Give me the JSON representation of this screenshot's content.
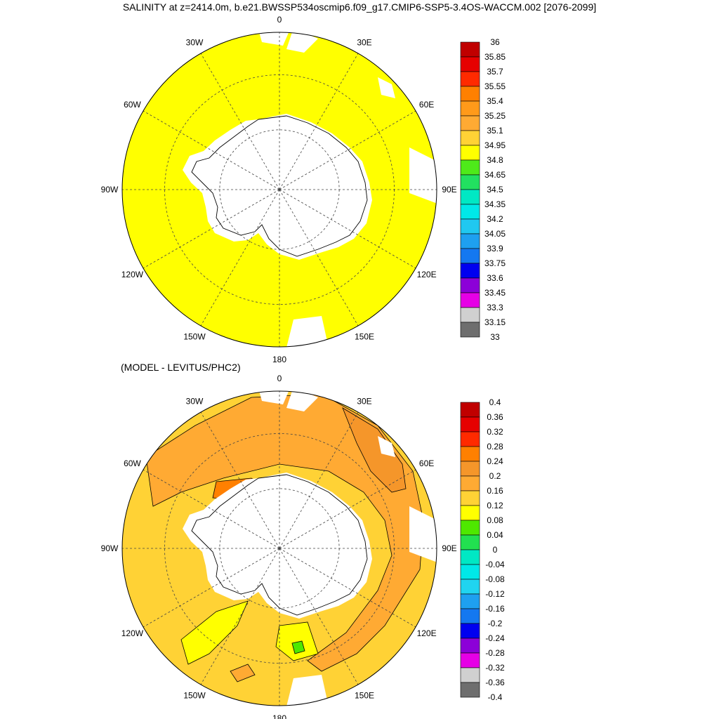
{
  "page_title": "SALINITY at z=2414.0m, b.e21.BWSSP534oscmip6.f09_g17.CMIP6-SSP5-3.4OS-WACCM.002 [2076-2099]",
  "colors": {
    "land": "#ffffff",
    "coast": "#000000",
    "grid": "#444444"
  },
  "chart_data": [
    {
      "type": "heatmap",
      "name": "model-salinity",
      "projection": "south-polar-stereographic",
      "title": "SALINITY at z=2414.0m, b.e21.BWSSP534oscmip6.f09_g17.CMIP6-SSP5-3.4OS-WACCM.002 [2076-2099]",
      "longitude_labels": [
        "0",
        "30E",
        "60E",
        "90E",
        "120E",
        "150E",
        "180",
        "150W",
        "120W",
        "90W",
        "60W",
        "30W"
      ],
      "field_value": 34.9,
      "colorbar": {
        "levels": [
          "36",
          "35.85",
          "35.7",
          "35.55",
          "35.4",
          "35.25",
          "35.1",
          "34.95",
          "34.8",
          "34.65",
          "34.5",
          "34.35",
          "34.2",
          "34.05",
          "33.9",
          "33.75",
          "33.6",
          "33.45",
          "33.3",
          "33.15",
          "33"
        ],
        "colors": [
          "#c00000",
          "#e60000",
          "#ff2a00",
          "#ff8000",
          "#ff9a1a",
          "#ffaa33",
          "#ffd235",
          "#ffff00",
          "#4eea1a",
          "#22e060",
          "#00e8c4",
          "#00e8e8",
          "#20c8f0",
          "#1ea0f0",
          "#1478f0",
          "#0000f0",
          "#8c00d8",
          "#e600e6",
          "#d0d0d0",
          "#6e6e6e"
        ]
      }
    },
    {
      "type": "heatmap",
      "name": "model-minus-levitus",
      "projection": "south-polar-stereographic",
      "title": "(MODEL - LEVITUS/PHC2)",
      "longitude_labels": [
        "0",
        "30E",
        "60E",
        "90E",
        "120E",
        "150E",
        "180",
        "150W",
        "120W",
        "90W",
        "60W",
        "30W"
      ],
      "field_value_range": [
        0.08,
        0.28
      ],
      "colorbar": {
        "levels": [
          "0.4",
          "0.36",
          "0.32",
          "0.28",
          "0.24",
          "0.2",
          "0.16",
          "0.12",
          "0.08",
          "0.04",
          "0",
          "-0.04",
          "-0.08",
          "-0.12",
          "-0.16",
          "-0.2",
          "-0.24",
          "-0.28",
          "-0.32",
          "-0.36",
          "-0.4"
        ],
        "colors": [
          "#c00000",
          "#e60000",
          "#ff2a00",
          "#ff8000",
          "#f5962a",
          "#ffaa33",
          "#ffd235",
          "#ffff00",
          "#4ee800",
          "#22e050",
          "#00e8c4",
          "#00e8e8",
          "#20d4f0",
          "#1ea0f0",
          "#1478f0",
          "#0000f0",
          "#8c00d8",
          "#e600e6",
          "#d0d0d0",
          "#6e6e6e"
        ]
      }
    }
  ]
}
